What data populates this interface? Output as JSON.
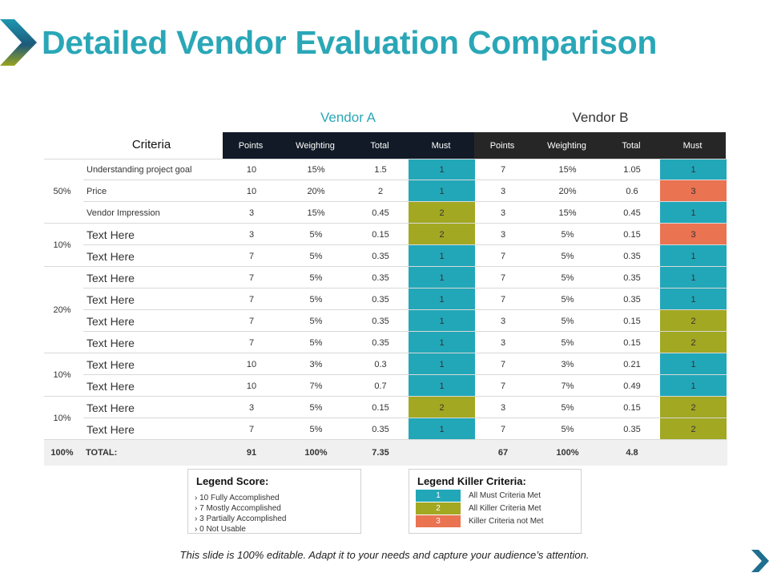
{
  "title": "Detailed Vendor Evaluation Comparison",
  "vendor_a": "Vendor A",
  "vendor_b": "Vendor B",
  "criteria_header": "Criteria",
  "columns": [
    "Points",
    "Weighting",
    "Total",
    "Must"
  ],
  "groups": [
    {
      "pct": "50%",
      "rows": [
        0,
        1,
        2
      ]
    },
    {
      "pct": "10%",
      "rows": [
        3,
        4
      ]
    },
    {
      "pct": "20%",
      "rows": [
        5,
        6,
        7,
        8
      ]
    },
    {
      "pct": "10%",
      "rows": [
        9,
        10
      ]
    },
    {
      "pct": "10%",
      "rows": [
        11,
        12
      ]
    }
  ],
  "rows": [
    {
      "criteria": "Understanding project goal",
      "a": [
        "10",
        "15%",
        "1.5",
        "1"
      ],
      "b": [
        "7",
        "15%",
        "1.05",
        "1"
      ]
    },
    {
      "criteria": "Price",
      "a": [
        "10",
        "20%",
        "2",
        "1"
      ],
      "b": [
        "3",
        "20%",
        "0.6",
        "3"
      ]
    },
    {
      "criteria": "Vendor Impression",
      "a": [
        "3",
        "15%",
        "0.45",
        "2"
      ],
      "b": [
        "3",
        "15%",
        "0.45",
        "1"
      ]
    },
    {
      "criteria": "Text Here",
      "a": [
        "3",
        "5%",
        "0.15",
        "2"
      ],
      "b": [
        "3",
        "5%",
        "0.15",
        "3"
      ]
    },
    {
      "criteria": "Text Here",
      "a": [
        "7",
        "5%",
        "0.35",
        "1"
      ],
      "b": [
        "7",
        "5%",
        "0.35",
        "1"
      ]
    },
    {
      "criteria": "Text Here",
      "a": [
        "7",
        "5%",
        "0.35",
        "1"
      ],
      "b": [
        "7",
        "5%",
        "0.35",
        "1"
      ]
    },
    {
      "criteria": "Text Here",
      "a": [
        "7",
        "5%",
        "0.35",
        "1"
      ],
      "b": [
        "7",
        "5%",
        "0.35",
        "1"
      ]
    },
    {
      "criteria": "Text Here",
      "a": [
        "7",
        "5%",
        "0.35",
        "1"
      ],
      "b": [
        "3",
        "5%",
        "0.15",
        "2"
      ]
    },
    {
      "criteria": "Text Here",
      "a": [
        "7",
        "5%",
        "0.35",
        "1"
      ],
      "b": [
        "3",
        "5%",
        "0.15",
        "2"
      ]
    },
    {
      "criteria": "Text Here",
      "a": [
        "10",
        "3%",
        "0.3",
        "1"
      ],
      "b": [
        "7",
        "3%",
        "0.21",
        "1"
      ]
    },
    {
      "criteria": "Text Here",
      "a": [
        "10",
        "7%",
        "0.7",
        "1"
      ],
      "b": [
        "7",
        "7%",
        "0.49",
        "1"
      ]
    },
    {
      "criteria": "Text Here",
      "a": [
        "3",
        "5%",
        "0.15",
        "2"
      ],
      "b": [
        "3",
        "5%",
        "0.15",
        "2"
      ]
    },
    {
      "criteria": "Text Here",
      "a": [
        "7",
        "5%",
        "0.35",
        "1"
      ],
      "b": [
        "7",
        "5%",
        "0.35",
        "2"
      ]
    }
  ],
  "total": {
    "pct": "100%",
    "label": "TOTAL:",
    "a": [
      "91",
      "100%",
      "7.35"
    ],
    "b": [
      "67",
      "100%",
      "4.8"
    ]
  },
  "legend_score": {
    "title": "Legend Score:",
    "items": [
      "› 10 Fully Accomplished",
      "› 7 Mostly Accomplished",
      "› 3 Partially Accomplished",
      "› 0 Not Usable"
    ]
  },
  "legend_killer": {
    "title": "Legend Killer Criteria:",
    "items": [
      {
        "score": "1",
        "label": "All Must Criteria Met"
      },
      {
        "score": "2",
        "label": "All Killer Criteria Met"
      },
      {
        "score": "3",
        "label": "Killer Criteria not Met"
      }
    ]
  },
  "colors": {
    "teal": "#22a7b8",
    "olive": "#a2a822",
    "coral": "#ea7352",
    "title": "#2aa7b7"
  },
  "footer": "This slide is 100% editable. Adapt it to your needs and capture your audience’s attention."
}
